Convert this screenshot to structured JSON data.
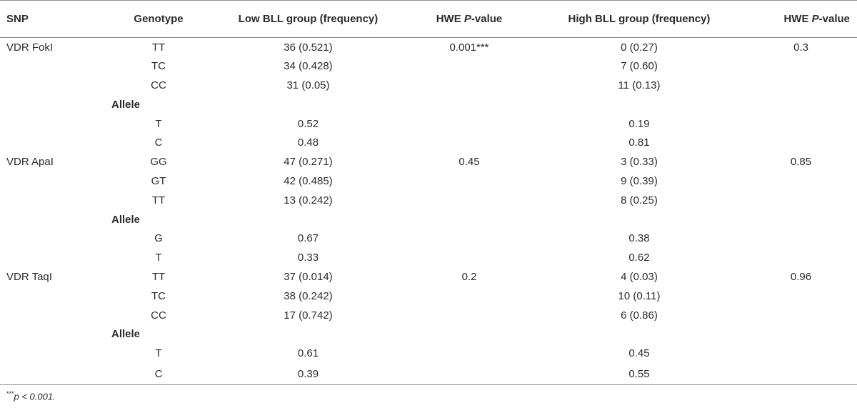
{
  "headers": {
    "snp": "SNP",
    "genotype": "Genotype",
    "low": "Low BLL group (frequency)",
    "hwe1_prefix": "HWE ",
    "hwe1_p": "P",
    "hwe1_suffix": "-value",
    "high": "High BLL group (frequency)",
    "hwe2_prefix": "HWE ",
    "hwe2_p": "P",
    "hwe2_suffix": "-value"
  },
  "rows": [
    {
      "snp": "VDR FokI",
      "genotype": "TT",
      "low": "36 (0.521)",
      "hwe1": "0.001***",
      "high": "0 (0.27)",
      "hwe2": "0.3"
    },
    {
      "snp": "",
      "genotype": "TC",
      "low": "34 (0.428)",
      "hwe1": "",
      "high": "7 (0.60)",
      "hwe2": ""
    },
    {
      "snp": "",
      "genotype": "CC",
      "low": "31 (0.05)",
      "hwe1": "",
      "high": "11 (0.13)",
      "hwe2": ""
    },
    {
      "allele_label": "Allele"
    },
    {
      "snp": "",
      "genotype": "T",
      "low": "0.52",
      "hwe1": "",
      "high": "0.19",
      "hwe2": ""
    },
    {
      "snp": "",
      "genotype": "C",
      "low": "0.48",
      "hwe1": "",
      "high": "0.81",
      "hwe2": ""
    },
    {
      "snp": "VDR ApaI",
      "genotype": "GG",
      "low": "47 (0.271)",
      "hwe1": "0.45",
      "high": "3 (0.33)",
      "hwe2": "0.85"
    },
    {
      "snp": "",
      "genotype": "GT",
      "low": "42 (0.485)",
      "hwe1": "",
      "high": "9 (0.39)",
      "hwe2": ""
    },
    {
      "snp": "",
      "genotype": "TT",
      "low": "13 (0.242)",
      "hwe1": "",
      "high": "8 (0.25)",
      "hwe2": ""
    },
    {
      "allele_label": "Allele"
    },
    {
      "snp": "",
      "genotype": "G",
      "low": "0.67",
      "hwe1": "",
      "high": "0.38",
      "hwe2": ""
    },
    {
      "snp": "",
      "genotype": "T",
      "low": "0.33",
      "hwe1": "",
      "high": "0.62",
      "hwe2": ""
    },
    {
      "snp": "VDR TaqI",
      "genotype": "TT",
      "low": "37 (0.014)",
      "hwe1": "0.2",
      "high": "4 (0.03)",
      "hwe2": "0.96"
    },
    {
      "snp": "",
      "genotype": "TC",
      "low": "38 (0.242)",
      "hwe1": "",
      "high": "10 (0.11)",
      "hwe2": ""
    },
    {
      "snp": "",
      "genotype": "CC",
      "low": "17 (0.742)",
      "hwe1": "",
      "high": "6 (0.86)",
      "hwe2": ""
    },
    {
      "allele_label": "Allele"
    },
    {
      "snp": "",
      "genotype": "T",
      "low": "0.61",
      "hwe1": "",
      "high": "0.45",
      "hwe2": ""
    },
    {
      "snp": "",
      "genotype": "C",
      "low": "0.39",
      "hwe1": "",
      "high": "0.55",
      "hwe2": ""
    }
  ],
  "footnote": {
    "marker": "***",
    "text": "p < 0.001."
  }
}
